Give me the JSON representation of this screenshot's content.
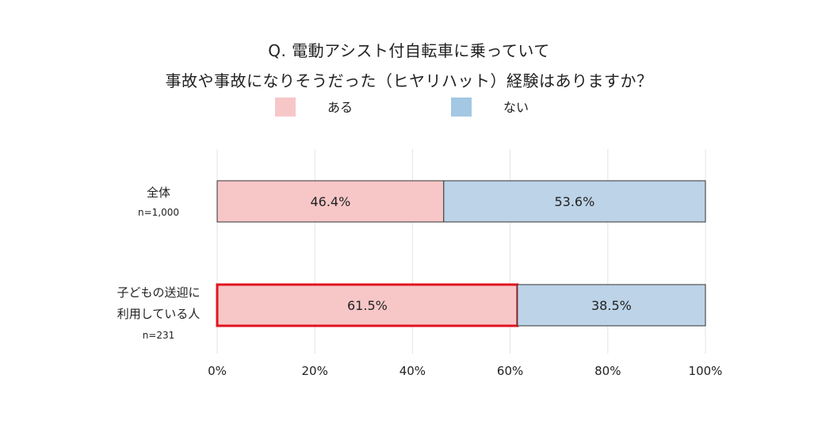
{
  "title_lines": [
    "Q. 電動アシスト付自転車に乗っていて",
    "事故や事故になりそうだった（ヒヤリハット）経験はありますか？"
  ],
  "colors": {
    "aru": "#f7c7c8",
    "nai": "#bcd3e8",
    "legend_nai": "#a3c8e3",
    "highlight": "#e0141e",
    "grid": "#e3e3e3",
    "bar_stroke": "#333333"
  },
  "chart_data": {
    "type": "bar",
    "orientation": "horizontal",
    "stacked": true,
    "title": "Q. 電動アシスト付自転車に乗っていて 事故や事故になりそうだった（ヒヤリハット）経験はありますか？",
    "legend_position": "top",
    "categories": [
      {
        "lines": [
          "全体"
        ],
        "n": "n=1,000"
      },
      {
        "lines": [
          "子どもの送迎に",
          "利用している人"
        ],
        "n": "n=231"
      }
    ],
    "series": [
      {
        "name": "ある",
        "values": [
          46.4,
          61.5
        ],
        "labels": [
          "46.4%",
          "61.5%"
        ]
      },
      {
        "name": "ない",
        "values": [
          53.6,
          38.5
        ],
        "labels": [
          "53.6%",
          "38.5%"
        ]
      }
    ],
    "xlim": [
      0,
      100
    ],
    "x_ticks": [
      0,
      20,
      40,
      60,
      80,
      100
    ],
    "x_tick_labels": [
      "0%",
      "20%",
      "40%",
      "60%",
      "80%",
      "100%"
    ],
    "grid": true,
    "highlight": {
      "category_index": 1,
      "series_index": 0
    }
  }
}
